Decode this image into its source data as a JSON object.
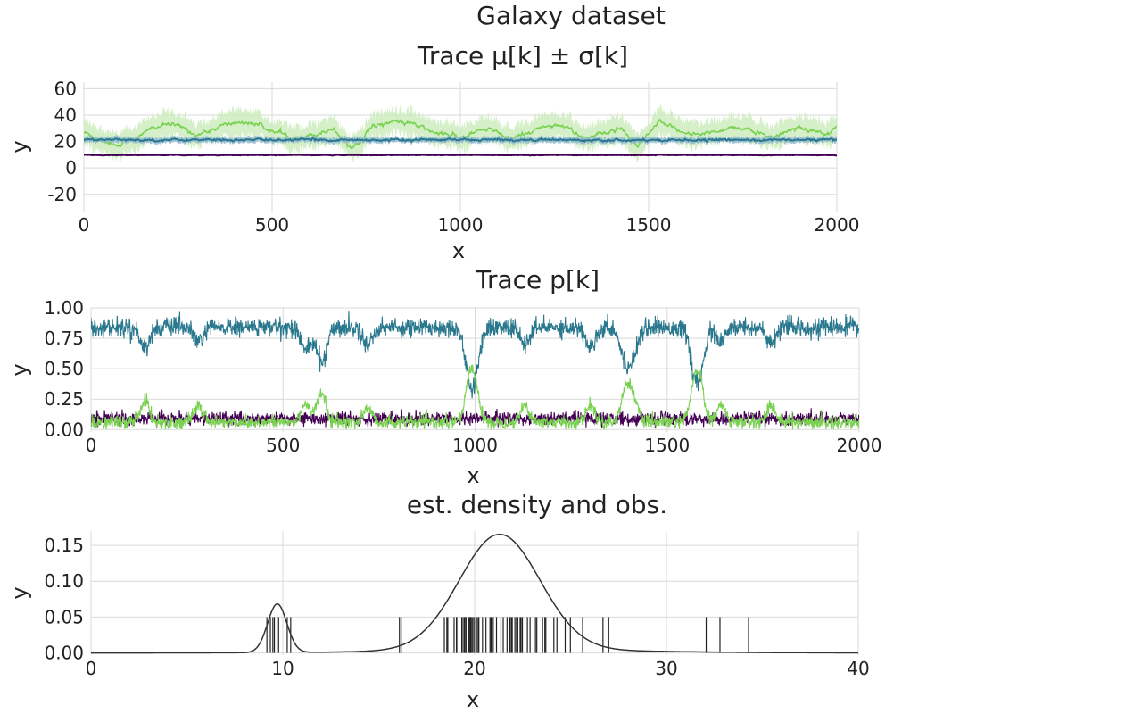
{
  "figure": {
    "title": "Galaxy dataset"
  },
  "chart_data": [
    {
      "type": "line",
      "title": "Trace μ[k] ± σ[k]",
      "xlabel": "x",
      "ylabel": "y",
      "xlim": [
        0,
        2000
      ],
      "ylim": [
        -33,
        65
      ],
      "xticks": [
        0,
        500,
        1000,
        1500,
        2000
      ],
      "xtick_labels": [
        "0",
        "500",
        "1000",
        "1500",
        "2000"
      ],
      "yticks": [
        -20,
        0,
        20,
        40,
        60
      ],
      "ytick_labels": [
        "-20",
        "0",
        "20",
        "40",
        "60"
      ],
      "grid": true,
      "series": [
        {
          "color": "#440154",
          "band_color": "#b39bc6",
          "mean": 9.7,
          "mean_noise": 0.15,
          "band": 0.5,
          "mu": [
            [
              0,
              9.7
            ],
            [
              2000,
              9.7
            ]
          ]
        },
        {
          "color": "#2a788e",
          "band_color": "#8fb8d1",
          "mean": 21.2,
          "mean_noise": 0.6,
          "band": 2.2,
          "mu": [
            [
              0,
              21.2
            ],
            [
              2000,
              21.2
            ]
          ]
        },
        {
          "color": "#7ad151",
          "band_color": "#c7ebb5",
          "mean_noise": 1.2,
          "band": 9,
          "mu": [
            [
              0,
              27
            ],
            [
              40,
              22
            ],
            [
              90,
              17
            ],
            [
              110,
              20
            ],
            [
              150,
              24
            ],
            [
              180,
              30
            ],
            [
              220,
              33
            ],
            [
              260,
              31
            ],
            [
              300,
              25
            ],
            [
              340,
              29
            ],
            [
              380,
              33
            ],
            [
              420,
              35
            ],
            [
              460,
              33
            ],
            [
              500,
              28
            ],
            [
              540,
              24
            ],
            [
              580,
              23
            ],
            [
              620,
              26
            ],
            [
              660,
              30
            ],
            [
              690,
              22
            ],
            [
              710,
              15
            ],
            [
              730,
              20
            ],
            [
              760,
              30
            ],
            [
              790,
              34
            ],
            [
              840,
              35
            ],
            [
              880,
              33
            ],
            [
              900,
              30
            ],
            [
              940,
              26
            ],
            [
              980,
              25
            ],
            [
              1000,
              22
            ],
            [
              1040,
              27
            ],
            [
              1080,
              30
            ],
            [
              1110,
              24
            ],
            [
              1140,
              22
            ],
            [
              1180,
              27
            ],
            [
              1230,
              32
            ],
            [
              1270,
              33
            ],
            [
              1310,
              25
            ],
            [
              1340,
              23
            ],
            [
              1380,
              26
            ],
            [
              1420,
              30
            ],
            [
              1450,
              22
            ],
            [
              1470,
              15
            ],
            [
              1490,
              22
            ],
            [
              1530,
              35
            ],
            [
              1560,
              30
            ],
            [
              1600,
              27
            ],
            [
              1640,
              25
            ],
            [
              1680,
              28
            ],
            [
              1720,
              31
            ],
            [
              1760,
              30
            ],
            [
              1800,
              25
            ],
            [
              1830,
              22
            ],
            [
              1860,
              27
            ],
            [
              1900,
              31
            ],
            [
              1940,
              28
            ],
            [
              1970,
              25
            ],
            [
              2000,
              32
            ]
          ]
        }
      ]
    },
    {
      "type": "line",
      "title": "Trace p[k]",
      "xlabel": "x",
      "ylabel": "y",
      "xlim": [
        0,
        2000
      ],
      "ylim": [
        -0.02,
        1.0
      ],
      "xticks": [
        0,
        500,
        1000,
        1500,
        2000
      ],
      "xtick_labels": [
        "0",
        "500",
        "1000",
        "1500",
        "2000"
      ],
      "yticks": [
        0,
        0.25,
        0.5,
        0.75,
        1.0
      ],
      "ytick_labels": [
        "0.00",
        "0.25",
        "0.50",
        "0.75",
        "1.00"
      ],
      "grid": true,
      "series": [
        {
          "color": "#2a788e",
          "base": 0.84,
          "noise": 0.07,
          "dips": [
            [
              140,
              0.68
            ],
            [
              280,
              0.72
            ],
            [
              560,
              0.66
            ],
            [
              600,
              0.55
            ],
            [
              720,
              0.7
            ],
            [
              985,
              0.52
            ],
            [
              1000,
              0.55
            ],
            [
              1130,
              0.7
            ],
            [
              1300,
              0.68
            ],
            [
              1390,
              0.6
            ],
            [
              1410,
              0.64
            ],
            [
              1570,
              0.6
            ],
            [
              1585,
              0.52
            ],
            [
              1640,
              0.72
            ],
            [
              1770,
              0.7
            ]
          ]
        },
        {
          "color": "#440154",
          "base": 0.09,
          "noise": 0.05,
          "dips": []
        },
        {
          "color": "#7ad151",
          "base": 0.06,
          "noise": 0.05,
          "peaks": [
            [
              140,
              0.24
            ],
            [
              280,
              0.2
            ],
            [
              560,
              0.22
            ],
            [
              600,
              0.3
            ],
            [
              720,
              0.18
            ],
            [
              985,
              0.35
            ],
            [
              1000,
              0.32
            ],
            [
              1130,
              0.2
            ],
            [
              1300,
              0.2
            ],
            [
              1390,
              0.3
            ],
            [
              1410,
              0.28
            ],
            [
              1570,
              0.3
            ],
            [
              1585,
              0.36
            ],
            [
              1640,
              0.2
            ],
            [
              1770,
              0.2
            ]
          ]
        }
      ]
    },
    {
      "type": "line",
      "title": "est. density and obs.",
      "xlabel": "x",
      "ylabel": "y",
      "xlim": [
        0,
        40
      ],
      "ylim": [
        -0.003,
        0.17
      ],
      "xticks": [
        0,
        10,
        20,
        30,
        40
      ],
      "xtick_labels": [
        "0",
        "10",
        "20",
        "30",
        "40"
      ],
      "yticks": [
        0,
        0.05,
        0.1,
        0.15
      ],
      "ytick_labels": [
        "0.00",
        "0.05",
        "0.10",
        "0.15"
      ],
      "grid": true,
      "density_components": [
        {
          "weight": 0.085,
          "mean": 9.71,
          "sd": 0.5
        },
        {
          "weight": 0.85,
          "mean": 21.3,
          "sd": 2.1
        },
        {
          "weight": 0.065,
          "mean": 22.5,
          "sd": 6.5
        }
      ],
      "rug_height": 0.05,
      "observations": [
        9.17,
        9.35,
        9.48,
        9.56,
        9.78,
        10.23,
        10.41,
        16.08,
        16.17,
        18.42,
        18.55,
        18.6,
        18.93,
        19.05,
        19.07,
        19.33,
        19.35,
        19.44,
        19.47,
        19.53,
        19.54,
        19.55,
        19.69,
        19.73,
        19.78,
        19.79,
        19.85,
        19.91,
        19.99,
        20.1,
        20.18,
        20.2,
        20.22,
        20.41,
        20.59,
        20.8,
        20.85,
        20.88,
        20.97,
        21.14,
        21.37,
        21.49,
        21.69,
        21.81,
        21.85,
        21.92,
        21.96,
        22.1,
        22.18,
        22.21,
        22.25,
        22.37,
        22.42,
        22.49,
        22.75,
        22.89,
        23.17,
        23.24,
        23.54,
        23.66,
        23.71,
        24.13,
        24.29,
        24.72,
        24.99,
        25.63,
        26.69,
        26.99,
        32.07,
        32.79,
        34.28
      ]
    }
  ]
}
